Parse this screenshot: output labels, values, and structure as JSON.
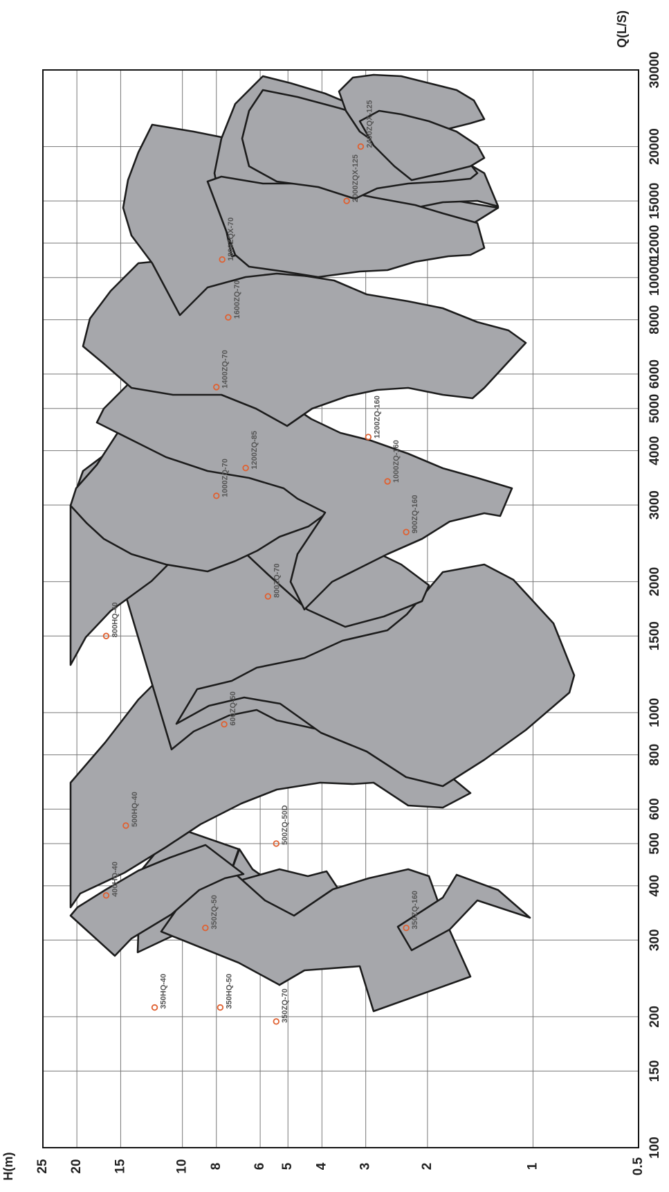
{
  "chart_data": {
    "type": "area",
    "title": "",
    "xlabel": "Q(L/S)",
    "ylabel": "H(m)",
    "x_scale": "log",
    "y_scale": "log",
    "xlim": [
      100,
      30000
    ],
    "ylim": [
      0.5,
      25
    ],
    "grid": true,
    "x_ticks": [
      "100",
      "150",
      "200",
      "300",
      "400",
      "500",
      "600",
      "800",
      "1000",
      "1500",
      "2000",
      "3000",
      "4000",
      "5000",
      "6000",
      "8000",
      "10000",
      "12000",
      "15000",
      "20000",
      "30000"
    ],
    "y_ticks": [
      "0.5",
      "1",
      "2",
      "3",
      "4",
      "5",
      "6",
      "8",
      "10",
      "15",
      "20",
      "25"
    ],
    "series": [
      {
        "name": "350HQ-40",
        "point": [
          210,
          12.0
        ]
      },
      {
        "name": "350HQ-50",
        "point": [
          210,
          7.8
        ]
      },
      {
        "name": "350ZQ-70",
        "point": [
          195,
          5.4
        ]
      },
      {
        "name": "350ZQ-50",
        "point": [
          320,
          8.6
        ]
      },
      {
        "name": "400HQ-40",
        "point": [
          380,
          16.5
        ]
      },
      {
        "name": "350ZQ-160",
        "point": [
          320,
          2.3
        ]
      },
      {
        "name": "500HQ-40",
        "point": [
          550,
          14.5
        ]
      },
      {
        "name": "500ZQ-50D",
        "point": [
          500,
          5.4
        ]
      },
      {
        "name": "600ZQ-50",
        "point": [
          940,
          7.6
        ]
      },
      {
        "name": "800HQ-40",
        "point": [
          1500,
          16.5
        ]
      },
      {
        "name": "800ZQ-70",
        "point": [
          1850,
          5.7
        ]
      },
      {
        "name": "900ZQ-160",
        "point": [
          2600,
          2.3
        ]
      },
      {
        "name": "1000ZQ-70",
        "point": [
          3150,
          8.0
        ]
      },
      {
        "name": "1000ZQ-160",
        "point": [
          3400,
          2.6
        ]
      },
      {
        "name": "1200ZQ-85",
        "point": [
          3650,
          6.6
        ]
      },
      {
        "name": "1200ZQ-160",
        "point": [
          4300,
          2.95
        ]
      },
      {
        "name": "1400ZQ-70",
        "point": [
          5600,
          8.0
        ]
      },
      {
        "name": "1600ZQ-70",
        "point": [
          8100,
          7.4
        ]
      },
      {
        "name": "1800ZQX-70",
        "point": [
          11000,
          7.7
        ]
      },
      {
        "name": "2000ZQX-125",
        "point": [
          15000,
          3.4
        ]
      },
      {
        "name": "2400ZQX-125",
        "point": [
          20000,
          3.1
        ]
      }
    ]
  }
}
